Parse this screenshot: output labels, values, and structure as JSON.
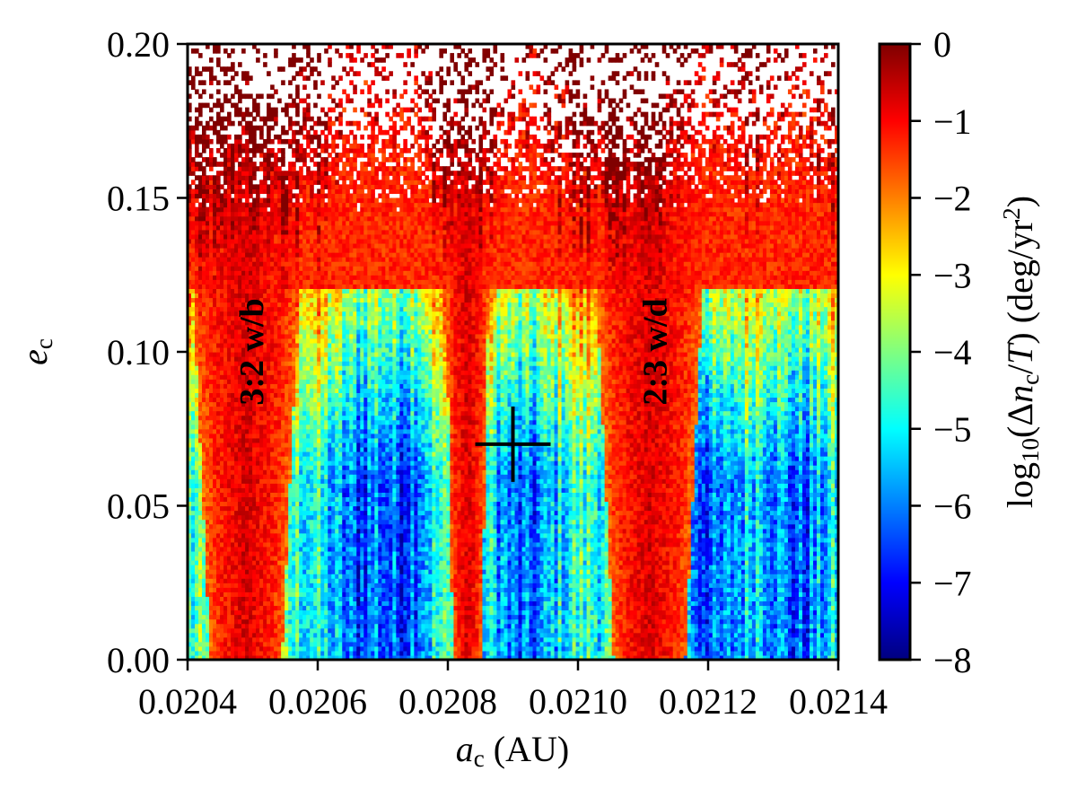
{
  "chart_data": {
    "type": "heatmap",
    "title": "",
    "xlabel": {
      "var": "a",
      "sub": "c",
      "rest": " (AU)"
    },
    "ylabel": {
      "var": "e",
      "sub": "c"
    },
    "xlim": [
      0.0204,
      0.0214
    ],
    "ylim": [
      0.0,
      0.2
    ],
    "x_ticks": [
      0.0204,
      0.0206,
      0.0208,
      0.021,
      0.0212,
      0.0214
    ],
    "x_tick_labels": [
      "0.0204",
      "0.0206",
      "0.0208",
      "0.0210",
      "0.0212",
      "0.0214"
    ],
    "y_ticks": [
      0.0,
      0.05,
      0.1,
      0.15,
      0.2
    ],
    "y_tick_labels": [
      "0.00",
      "0.05",
      "0.10",
      "0.15",
      "0.20"
    ],
    "colorbar": {
      "colormap": "jet",
      "range": [
        -8,
        0
      ],
      "ticks": [
        0,
        -1,
        -2,
        -3,
        -4,
        -5,
        -6,
        -7,
        -8
      ],
      "tick_labels": [
        "0",
        "−1",
        "−2",
        "−3",
        "−4",
        "−5",
        "−6",
        "−7",
        "−8"
      ],
      "label": {
        "pre": "log",
        "sub": "10",
        "open": "(Δ",
        "var": "n",
        "varsub": "c",
        "slash": "/",
        "var2": "T",
        "close": ") (deg/yr",
        "sup": "2",
        "end": ")"
      }
    },
    "annotations": [
      {
        "text": "3:2 w/b",
        "x": 0.02049,
        "y": 0.1,
        "rotation": -90
      },
      {
        "text": "2:3 w/d",
        "x": 0.02111,
        "y": 0.1,
        "rotation": -90
      }
    ],
    "marker": {
      "type": "cross",
      "x": 0.0209,
      "y": 0.07,
      "color": "#000000"
    },
    "field_description": {
      "blank_region": "e_c > ~0.16 (unstable, sparse cells)",
      "red_bands_center_x": [
        0.02049,
        0.02083,
        0.02111
      ],
      "stable_low_value_bands_center_x": [
        0.02066,
        0.02072,
        0.02092,
        0.02121,
        0.02134
      ],
      "value_min": -8,
      "value_max": 0
    }
  }
}
